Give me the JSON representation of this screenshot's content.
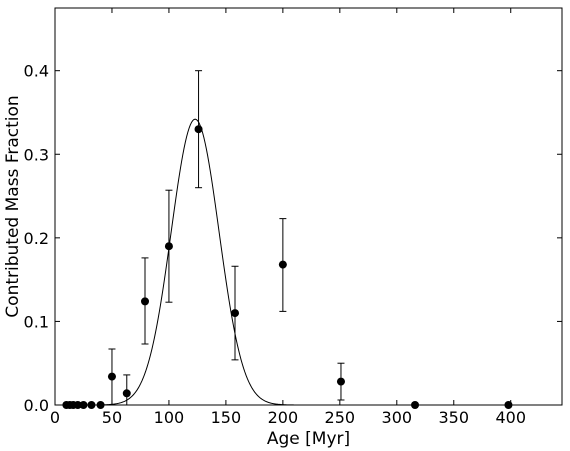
{
  "chart_data": {
    "type": "scatter",
    "title": "",
    "xlabel": "Age [Myr]",
    "ylabel": "Contributed Mass Fraction",
    "xlim": [
      0,
      445
    ],
    "ylim": [
      0,
      0.475
    ],
    "grid": false,
    "x_ticks": [
      0,
      50,
      100,
      150,
      200,
      250,
      300,
      350,
      400
    ],
    "x_tick_labels": [
      "0",
      "50",
      "100",
      "150",
      "200",
      "250",
      "300",
      "350",
      "400"
    ],
    "y_ticks": [
      0.0,
      0.1,
      0.2,
      0.3,
      0.4
    ],
    "y_tick_labels": [
      "0.0",
      "0.1",
      "0.2",
      "0.3",
      "0.4"
    ],
    "series": [
      {
        "kind": "points-with-errorbars",
        "points": [
          {
            "x": 10,
            "y": 0.0,
            "err_low": 0.0,
            "err_high": 0.0
          },
          {
            "x": 13,
            "y": 0.0,
            "err_low": 0.0,
            "err_high": 0.0
          },
          {
            "x": 16,
            "y": 0.0,
            "err_low": 0.0,
            "err_high": 0.0
          },
          {
            "x": 20,
            "y": 0.0,
            "err_low": 0.0,
            "err_high": 0.0
          },
          {
            "x": 25,
            "y": 0.0,
            "err_low": 0.0,
            "err_high": 0.0
          },
          {
            "x": 32,
            "y": 0.0,
            "err_low": 0.0,
            "err_high": 0.0
          },
          {
            "x": 40,
            "y": 0.0,
            "err_low": 0.0,
            "err_high": 0.0
          },
          {
            "x": 50,
            "y": 0.034,
            "err_low": 0.0,
            "err_high": 0.067
          },
          {
            "x": 63,
            "y": 0.014,
            "err_low": 0.0,
            "err_high": 0.036
          },
          {
            "x": 79,
            "y": 0.124,
            "err_low": 0.073,
            "err_high": 0.176
          },
          {
            "x": 100,
            "y": 0.19,
            "err_low": 0.123,
            "err_high": 0.257
          },
          {
            "x": 126,
            "y": 0.33,
            "err_low": 0.26,
            "err_high": 0.4
          },
          {
            "x": 158,
            "y": 0.11,
            "err_low": 0.054,
            "err_high": 0.166
          },
          {
            "x": 200,
            "y": 0.168,
            "err_low": 0.112,
            "err_high": 0.223
          },
          {
            "x": 251,
            "y": 0.028,
            "err_low": 0.006,
            "err_high": 0.05
          },
          {
            "x": 316,
            "y": 0.0,
            "err_low": 0.0,
            "err_high": 0.0
          },
          {
            "x": 398,
            "y": 0.0,
            "err_low": 0.0,
            "err_high": 0.0
          }
        ]
      },
      {
        "kind": "gaussian-fit-curve",
        "amplitude": 0.342,
        "center": 123,
        "sigma": 21,
        "x_range": [
          10,
          445
        ]
      }
    ]
  }
}
